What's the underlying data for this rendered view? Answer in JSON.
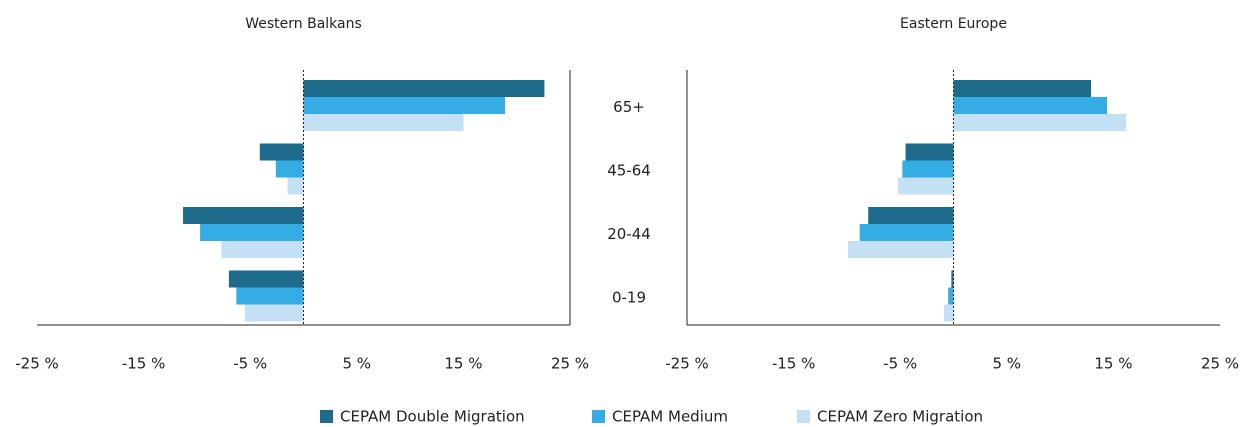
{
  "categories": [
    "65+",
    "45-64",
    "20-44",
    "0-19"
  ],
  "legend": [
    {
      "name": "CEPAM Double Migration",
      "color": "#1d6a8a"
    },
    {
      "name": "CEPAM Medium",
      "color": "#35ace4"
    },
    {
      "name": "CEPAM Zero Migration",
      "color": "#c3e0f4"
    }
  ],
  "chart_data": [
    {
      "type": "bar",
      "orientation": "horizontal",
      "title": "Western Balkans",
      "xlim": [
        -25,
        25
      ],
      "xticks": [
        {
          "value": -25,
          "label": "-25 %"
        },
        {
          "value": -15,
          "label": "-15 %"
        },
        {
          "value": -5,
          "label": "-5 %"
        },
        {
          "value": 5,
          "label": "5 %"
        },
        {
          "value": 15,
          "label": "15 %"
        },
        {
          "value": 25,
          "label": "25 %"
        }
      ],
      "series": [
        {
          "values": [
            22.6,
            -4.1,
            -11.3,
            -7.0
          ]
        },
        {
          "values": [
            18.9,
            -2.6,
            -9.7,
            -6.3
          ]
        },
        {
          "values": [
            15.0,
            -1.5,
            -7.7,
            -5.5
          ]
        }
      ]
    },
    {
      "type": "bar",
      "orientation": "horizontal",
      "title": "Eastern Europe",
      "xlim": [
        -25,
        25
      ],
      "xticks": [
        {
          "value": -25,
          "label": "-25 %"
        },
        {
          "value": -15,
          "label": "-15 %"
        },
        {
          "value": -5,
          "label": "-5 %"
        },
        {
          "value": 5,
          "label": "5 %"
        },
        {
          "value": 15,
          "label": "15 %"
        },
        {
          "value": 25,
          "label": "25 %"
        }
      ],
      "series": [
        {
          "values": [
            12.9,
            -4.5,
            -8.0,
            -0.2
          ]
        },
        {
          "values": [
            14.4,
            -4.8,
            -8.8,
            -0.5
          ]
        },
        {
          "values": [
            16.2,
            -5.2,
            -9.9,
            -0.9
          ]
        }
      ]
    }
  ]
}
